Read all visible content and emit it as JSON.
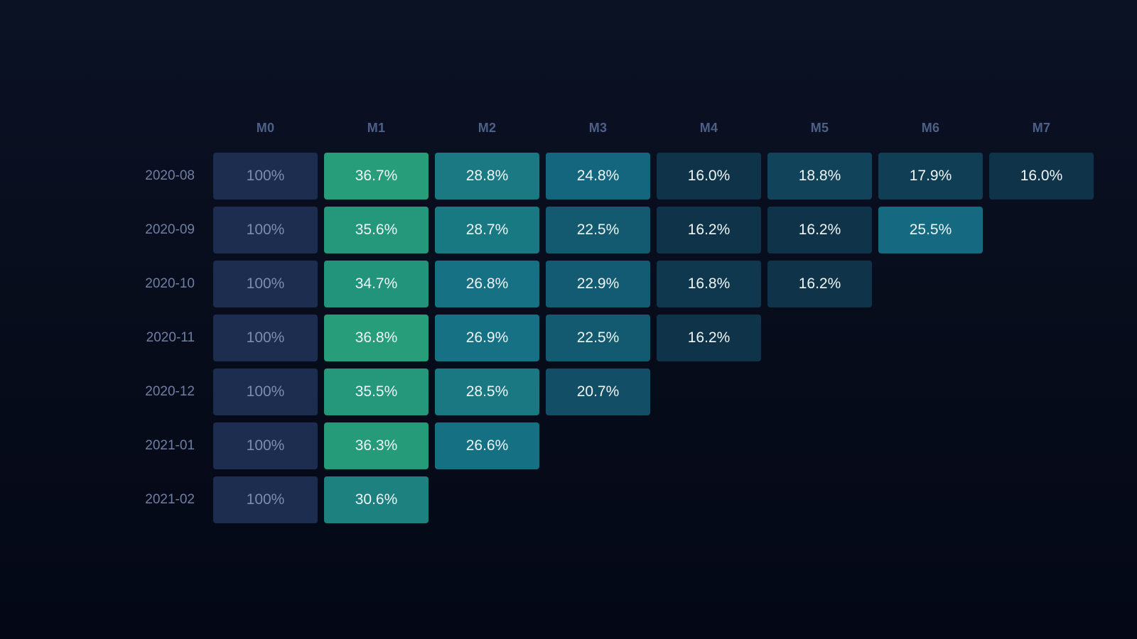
{
  "chart_data": {
    "type": "heatmap",
    "columns": [
      "M0",
      "M1",
      "M2",
      "M3",
      "M4",
      "M5",
      "M6",
      "M7"
    ],
    "rows": [
      {
        "cohort": "2020-08",
        "values": [
          100,
          36.7,
          28.8,
          24.8,
          16.0,
          18.8,
          17.9,
          16.0
        ],
        "labels": [
          "100%",
          "36.7%",
          "28.8%",
          "24.8%",
          "16.0%",
          "18.8%",
          "17.9%",
          "16.0%"
        ]
      },
      {
        "cohort": "2020-09",
        "values": [
          100,
          35.6,
          28.7,
          22.5,
          16.2,
          16.2,
          25.5
        ],
        "labels": [
          "100%",
          "35.6%",
          "28.7%",
          "22.5%",
          "16.2%",
          "16.2%",
          "25.5%"
        ]
      },
      {
        "cohort": "2020-10",
        "values": [
          100,
          34.7,
          26.8,
          22.9,
          16.8,
          16.2
        ],
        "labels": [
          "100%",
          "34.7%",
          "26.8%",
          "22.9%",
          "16.8%",
          "16.2%"
        ]
      },
      {
        "cohort": "2020-11",
        "values": [
          100,
          36.8,
          26.9,
          22.5,
          16.2
        ],
        "labels": [
          "100%",
          "36.8%",
          "26.9%",
          "22.5%",
          "16.2%"
        ]
      },
      {
        "cohort": "2020-12",
        "values": [
          100,
          35.5,
          28.5,
          20.7
        ],
        "labels": [
          "100%",
          "35.5%",
          "28.5%",
          "20.7%"
        ]
      },
      {
        "cohort": "2021-01",
        "values": [
          100,
          36.3,
          26.6
        ],
        "labels": [
          "100%",
          "36.3%",
          "26.6%"
        ]
      },
      {
        "cohort": "2021-02",
        "values": [
          100,
          30.6
        ],
        "labels": [
          "100%",
          "30.6%"
        ]
      }
    ],
    "value_unit": "%",
    "colors": {
      "base": "#1c2d4f",
      "low": "#0f3349",
      "mid": "#156d85",
      "high": "#279e79",
      "header_text": "#4d6088",
      "row_label_text": "#6f7fa3",
      "cell_text": "#eef6f8",
      "base_text": "#7d8db0"
    }
  }
}
